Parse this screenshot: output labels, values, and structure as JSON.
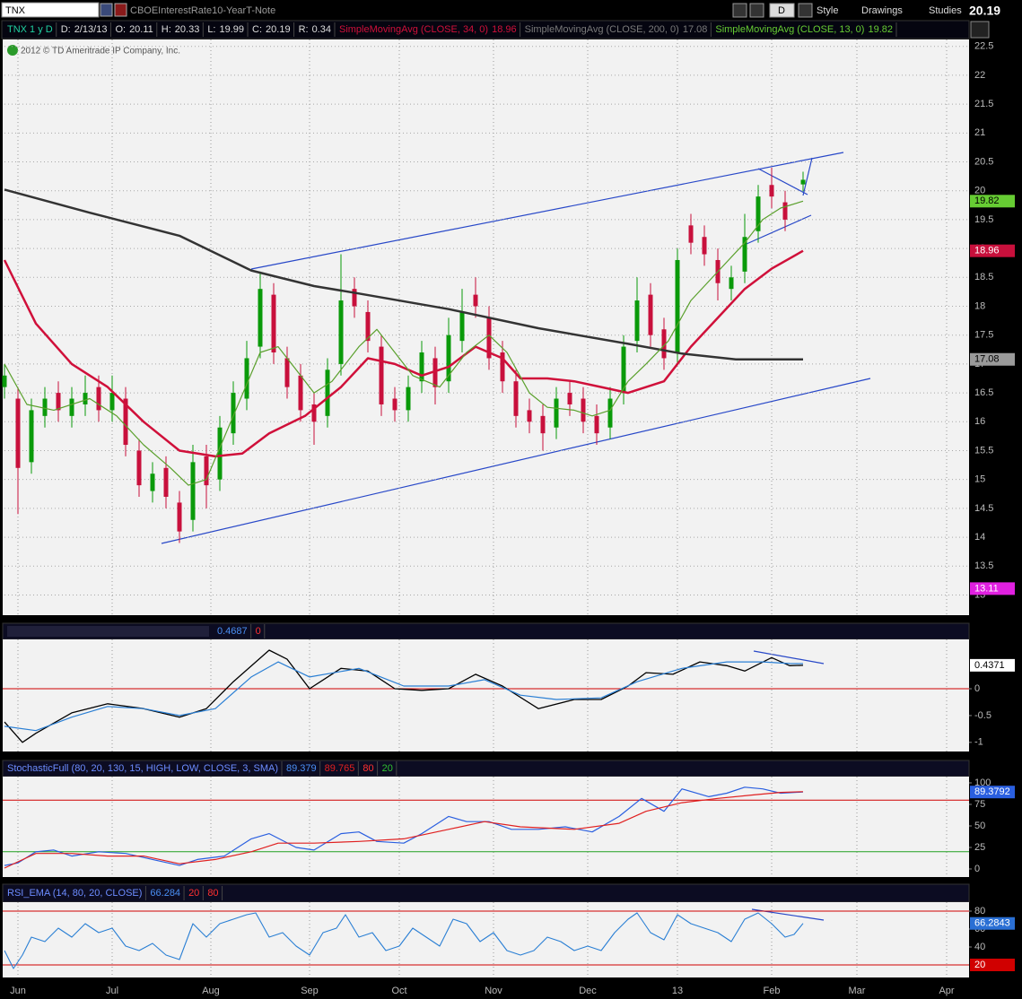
{
  "toolbar": {
    "symbol": "TNX",
    "description": "CBOEInterestRate10-YearT-Note",
    "aggregation": "D",
    "buttons": [
      "Style",
      "Drawings",
      "Studies"
    ]
  },
  "chart_data": [
    {
      "type": "candlestick",
      "header": {
        "title": "TNX 1 y D",
        "date_label": "D:",
        "date": "2/13/13",
        "open_label": "O:",
        "high_label": "H:",
        "low_label": "L:",
        "close_label": "C:",
        "range_label": "R:",
        "range": 0.34
      },
      "copyright": "2012 © TD Ameritrade IP Company, Inc.",
      "xlim": [
        0,
        215
      ],
      "xticks": [
        {
          "value": 3,
          "label": "Jun"
        },
        {
          "value": 24,
          "label": "Jul"
        },
        {
          "value": 46,
          "label": "Aug"
        },
        {
          "value": 68,
          "label": "Sep"
        },
        {
          "value": 88,
          "label": "Oct"
        },
        {
          "value": 109,
          "label": "Nov"
        },
        {
          "value": 130,
          "label": "Dec"
        },
        {
          "value": 150,
          "label": "13"
        },
        {
          "value": 171,
          "label": "Feb"
        },
        {
          "value": 190,
          "label": "Mar"
        },
        {
          "value": 210,
          "label": "Apr"
        }
      ],
      "ylim": [
        12.65,
        22.62
      ],
      "yticks": [
        13,
        13.5,
        14,
        14.5,
        15,
        15.5,
        16,
        16.5,
        17,
        17.5,
        18,
        18.5,
        19,
        19.5,
        20,
        20.5,
        21,
        21.5,
        22,
        22.5
      ],
      "grid": true,
      "up_color": "#0a9a0a",
      "down_color": "#c8103c",
      "x": [
        0,
        3,
        6,
        9,
        12,
        15,
        18,
        21,
        24,
        27,
        30,
        33,
        36,
        39,
        42,
        45,
        48,
        51,
        54,
        57,
        60,
        63,
        66,
        69,
        72,
        75,
        78,
        81,
        84,
        87,
        90,
        93,
        96,
        99,
        102,
        105,
        108,
        111,
        114,
        117,
        120,
        123,
        126,
        129,
        132,
        135,
        138,
        141,
        144,
        147,
        150,
        153,
        156,
        159,
        162,
        165,
        168,
        171,
        174,
        178
      ],
      "open": [
        16.6,
        16.4,
        15.3,
        16.1,
        16.5,
        16.1,
        16.3,
        16.6,
        16.2,
        16.4,
        15.5,
        14.8,
        15.2,
        14.6,
        14.3,
        15.4,
        15.0,
        15.8,
        16.4,
        17.3,
        18.2,
        17.1,
        16.8,
        16.3,
        16.1,
        17.0,
        18.3,
        17.9,
        17.3,
        16.4,
        16.2,
        16.7,
        17.1,
        16.7,
        17.4,
        18.2,
        17.8,
        17.2,
        16.7,
        16.2,
        16.1,
        15.9,
        16.5,
        16.4,
        16.1,
        15.9,
        16.5,
        17.4,
        18.2,
        17.6,
        17.2,
        19.4,
        19.2,
        18.8,
        18.3,
        18.6,
        19.3,
        20.1,
        19.8,
        20.11
      ],
      "high": [
        17.0,
        16.6,
        16.4,
        16.6,
        16.7,
        16.6,
        16.8,
        16.8,
        16.8,
        16.6,
        15.7,
        15.3,
        15.4,
        14.8,
        15.6,
        15.6,
        16.1,
        16.7,
        17.4,
        18.6,
        18.4,
        17.3,
        17.0,
        16.5,
        17.1,
        18.9,
        18.5,
        18.1,
        17.5,
        16.6,
        16.8,
        17.4,
        17.3,
        17.8,
        18.3,
        18.5,
        18.0,
        17.4,
        16.9,
        16.4,
        16.3,
        16.6,
        16.7,
        16.6,
        16.3,
        16.6,
        17.5,
        18.5,
        18.4,
        17.8,
        19.0,
        19.6,
        19.4,
        19.0,
        18.7,
        19.6,
        20.1,
        20.4,
        20.0,
        20.33
      ],
      "low": [
        16.4,
        14.4,
        15.1,
        15.9,
        16.0,
        15.9,
        16.1,
        16.0,
        16.0,
        15.4,
        14.7,
        14.6,
        14.5,
        13.9,
        14.1,
        14.5,
        14.8,
        15.6,
        16.2,
        17.1,
        17.0,
        16.4,
        16.0,
        15.6,
        15.9,
        16.8,
        17.8,
        17.2,
        16.1,
        16.0,
        16.0,
        16.5,
        16.3,
        16.5,
        17.2,
        17.8,
        16.9,
        16.5,
        15.9,
        15.8,
        15.5,
        15.7,
        16.1,
        15.8,
        15.6,
        15.7,
        16.3,
        17.2,
        17.3,
        16.9,
        17.0,
        18.9,
        18.7,
        18.1,
        18.1,
        18.4,
        19.1,
        19.7,
        19.3,
        19.99
      ],
      "close": [
        16.8,
        15.2,
        16.2,
        16.4,
        16.2,
        16.4,
        16.5,
        16.2,
        16.5,
        15.6,
        14.9,
        15.1,
        14.7,
        14.1,
        15.3,
        14.9,
        15.9,
        16.5,
        17.1,
        18.3,
        17.2,
        16.6,
        16.2,
        16.0,
        16.9,
        18.1,
        18.0,
        17.4,
        16.3,
        16.2,
        16.6,
        17.2,
        16.6,
        17.5,
        17.9,
        18.0,
        17.1,
        16.7,
        16.1,
        16.0,
        15.8,
        16.4,
        16.3,
        16.0,
        15.8,
        16.4,
        17.3,
        18.1,
        17.5,
        17.1,
        18.8,
        19.1,
        18.9,
        18.4,
        18.5,
        19.2,
        19.9,
        19.9,
        19.5,
        20.19
      ],
      "series": [
        {
          "name": "SimpleMovingAvg (CLOSE, 34, 0)",
          "color": "#d0103a",
          "width": 2.5,
          "badge": "#c8103c",
          "badge_text": "#ffffff",
          "x": [
            0,
            7,
            15,
            23,
            31,
            39,
            47,
            53,
            59,
            67,
            75,
            81,
            87,
            93,
            99,
            105,
            111,
            115,
            121,
            127,
            133,
            139,
            147,
            153,
            159,
            165,
            171,
            178
          ],
          "values": [
            18.8,
            17.7,
            17.0,
            16.6,
            16.0,
            15.5,
            15.4,
            15.45,
            15.8,
            16.1,
            16.6,
            17.1,
            17.0,
            16.8,
            16.95,
            17.3,
            17.1,
            16.75,
            16.75,
            16.7,
            16.6,
            16.5,
            16.7,
            17.3,
            17.8,
            18.3,
            18.65,
            18.96
          ]
        },
        {
          "name": "SimpleMovingAvg (CLOSE, 200, 0)",
          "color": "#333333",
          "legend_color": "#7a7a7a",
          "width": 2.5,
          "badge": "#9a9a9a",
          "badge_text": "#000000",
          "x": [
            0,
            19,
            39,
            55,
            69,
            79,
            99,
            119,
            139,
            151,
            163,
            178
          ],
          "values": [
            20.02,
            19.62,
            19.22,
            18.62,
            18.35,
            18.22,
            17.95,
            17.62,
            17.35,
            17.18,
            17.08,
            17.08
          ]
        },
        {
          "name": "SimpleMovingAvg (CLOSE, 13, 0)",
          "color": "#5aa02c",
          "legend_color": "#66cc33",
          "width": 1.2,
          "badge": "#66cc33",
          "badge_text": "#000000",
          "x": [
            0,
            5,
            11,
            19,
            25,
            31,
            37,
            41,
            45,
            51,
            57,
            61,
            65,
            69,
            73,
            79,
            83,
            87,
            91,
            97,
            103,
            108,
            112,
            117,
            121,
            127,
            131,
            135,
            139,
            143,
            148,
            153,
            159,
            165,
            169,
            173,
            178
          ],
          "values": [
            17.0,
            16.3,
            16.2,
            16.4,
            16.1,
            15.6,
            15.2,
            14.9,
            15.0,
            16.1,
            17.2,
            17.3,
            16.9,
            16.5,
            16.7,
            17.3,
            17.6,
            17.2,
            16.8,
            16.6,
            17.2,
            17.5,
            17.2,
            16.5,
            16.25,
            16.2,
            16.1,
            16.2,
            16.7,
            17.0,
            17.4,
            18.1,
            18.6,
            19.1,
            19.5,
            19.7,
            19.82
          ]
        }
      ],
      "markers": [
        {
          "value": 13.11,
          "color": "#e020e0"
        }
      ]
    },
    {
      "type": "line",
      "ylim": [
        -1.17,
        0.92
      ],
      "yticks": [
        -1,
        -0.5,
        0
      ],
      "grid": false,
      "reference_lines": [
        {
          "value": 0,
          "color": "#d00000"
        }
      ],
      "series": [
        {
          "color": "#000000",
          "width": 1.3,
          "in_header": false,
          "badge": "#ffffff",
          "badge_text": "#000000",
          "x": [
            0,
            4,
            7,
            15,
            23,
            31,
            39,
            45,
            51,
            59,
            63,
            68,
            75,
            81,
            87,
            93,
            99,
            105,
            111,
            119,
            127,
            133,
            139,
            143,
            149,
            155,
            161,
            165,
            171,
            175,
            178
          ],
          "values": [
            -0.62,
            -1.0,
            -0.83,
            -0.45,
            -0.28,
            -0.37,
            -0.53,
            -0.37,
            0.13,
            0.72,
            0.55,
            0,
            0.38,
            0.33,
            0,
            -0.03,
            0,
            0.27,
            0.05,
            -0.37,
            -0.2,
            -0.2,
            0.05,
            0.3,
            0.27,
            0.5,
            0.43,
            0.33,
            0.58,
            0.43,
            0.4371
          ]
        },
        {
          "color": "#2a7fd4",
          "width": 1.2,
          "x": [
            0,
            7,
            15,
            23,
            31,
            39,
            47,
            55,
            61,
            68,
            79,
            89,
            99,
            107,
            115,
            123,
            133,
            141,
            151,
            161,
            169,
            175,
            178
          ],
          "values": [
            -0.7,
            -0.78,
            -0.53,
            -0.33,
            -0.37,
            -0.5,
            -0.37,
            0.22,
            0.5,
            0.22,
            0.38,
            0.05,
            0.05,
            0.17,
            -0.12,
            -0.2,
            -0.17,
            0.13,
            0.38,
            0.5,
            0.5,
            0.47,
            0.4687
          ]
        }
      ]
    },
    {
      "type": "line",
      "title": "StochasticFull (80, 20, 130, 15, HIGH, LOW, CLOSE, 3, SMA)",
      "ylim": [
        -9.4,
        107.3
      ],
      "yticks": [
        0,
        25,
        50,
        75,
        100
      ],
      "grid": false,
      "reference_lines": [
        {
          "value": 80,
          "color": "#d00000"
        },
        {
          "value": 20,
          "color": "#20a020"
        }
      ],
      "series": [
        {
          "color": "#2a5fe0",
          "width": 1.2,
          "legend_value": "89.379",
          "badge": "#2a5fe0",
          "badge_text": "#ffffff",
          "x": [
            0,
            3,
            7,
            11,
            15,
            21,
            27,
            33,
            39,
            43,
            49,
            55,
            59,
            65,
            69,
            75,
            79,
            83,
            89,
            93,
            99,
            103,
            108,
            113,
            119,
            125,
            131,
            137,
            142,
            147,
            151,
            157,
            161,
            165,
            169,
            173,
            178
          ],
          "values": [
            4,
            7,
            20,
            22,
            15,
            20,
            18,
            11,
            4,
            11,
            15,
            35,
            41,
            25,
            22,
            41,
            43,
            32,
            30,
            41,
            61,
            55,
            55,
            46,
            46,
            49,
            43,
            61,
            82,
            67,
            93,
            84,
            88,
            95,
            93,
            88,
            89.3792
          ]
        },
        {
          "color": "#e02020",
          "width": 1.2,
          "x": [
            0,
            7,
            15,
            23,
            31,
            39,
            47,
            55,
            61,
            69,
            79,
            89,
            99,
            107,
            115,
            127,
            137,
            143,
            151,
            159,
            167,
            173,
            178
          ],
          "values": [
            1,
            18,
            18,
            15,
            15,
            6,
            11,
            20,
            30,
            30,
            32,
            35,
            46,
            55,
            49,
            46,
            53,
            67,
            77,
            82,
            86,
            89,
            89.765
          ]
        }
      ]
    },
    {
      "type": "line",
      "title": "RSI_EMA (14, 80, 20, CLOSE)",
      "ylim": [
        6,
        90
      ],
      "yticks": [
        40,
        60,
        80
      ],
      "grid": false,
      "reference_lines": [
        {
          "value": 20,
          "color": "#d00000",
          "badge": "#d00000"
        },
        {
          "value": 80,
          "color": "#d00000"
        }
      ],
      "series": [
        {
          "color": "#2a7fd4",
          "width": 1.1,
          "legend_value": "66.284",
          "badge": "#2a6fd4",
          "badge_text": "#ffffff",
          "x": [
            0,
            2,
            4,
            6,
            9,
            12,
            15,
            18,
            21,
            24,
            27,
            30,
            33,
            36,
            39,
            42,
            45,
            48,
            51,
            54,
            56,
            59,
            62,
            65,
            68,
            71,
            74,
            76,
            79,
            82,
            85,
            88,
            91,
            94,
            97,
            100,
            103,
            106,
            109,
            112,
            115,
            118,
            121,
            124,
            127,
            130,
            133,
            136,
            139,
            141,
            144,
            147,
            150,
            153,
            156,
            159,
            162,
            165,
            168,
            171,
            174,
            176,
            178
          ],
          "values": [
            36,
            16,
            31,
            51,
            46,
            61,
            51,
            66,
            56,
            61,
            41,
            36,
            44,
            31,
            26,
            66,
            51,
            66,
            71,
            76,
            78,
            51,
            56,
            41,
            31,
            56,
            61,
            76,
            51,
            56,
            36,
            41,
            61,
            51,
            41,
            71,
            66,
            46,
            56,
            36,
            31,
            36,
            51,
            46,
            36,
            41,
            36,
            56,
            71,
            78,
            56,
            48,
            76,
            66,
            61,
            56,
            46,
            71,
            78,
            66,
            51,
            54,
            66.2843
          ]
        }
      ]
    }
  ]
}
